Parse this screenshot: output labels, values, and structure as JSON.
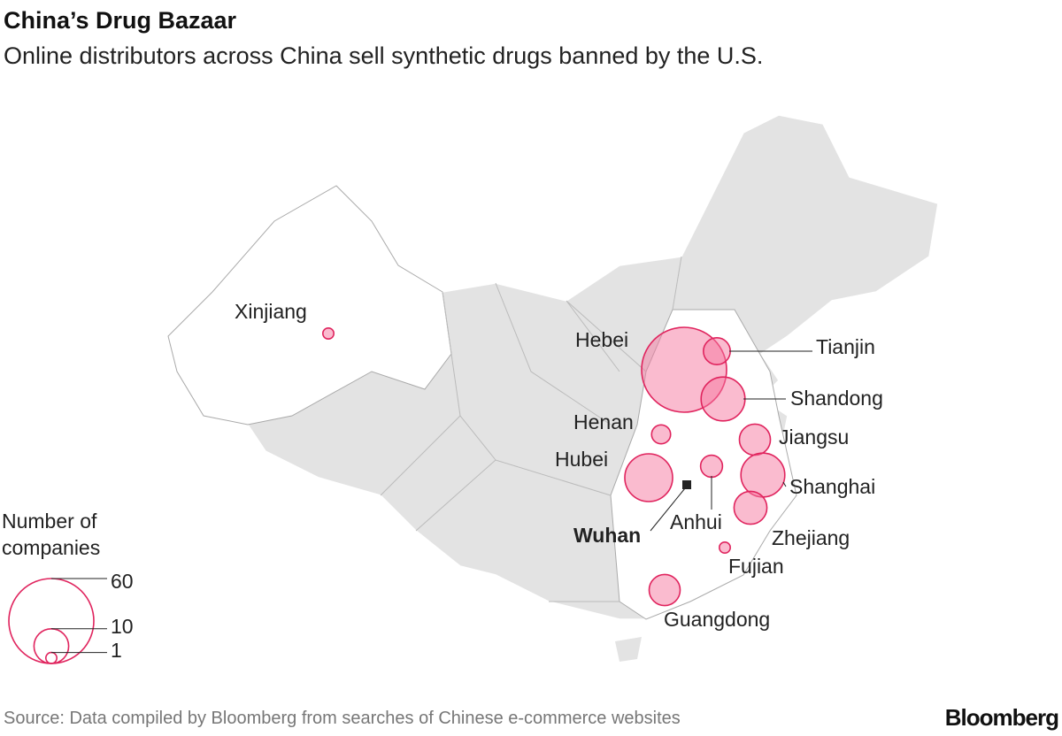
{
  "title": "China’s Drug Bazaar",
  "subtitle": "Online distributors across China sell synthetic drugs banned by the U.S.",
  "provinces": [
    {
      "name": "Hebei",
      "value": 60
    },
    {
      "name": "Tianjin",
      "value": 6
    },
    {
      "name": "Shandong",
      "value": 16
    },
    {
      "name": "Henan",
      "value": 3
    },
    {
      "name": "Jiangsu",
      "value": 8
    },
    {
      "name": "Hubei",
      "value": 19
    },
    {
      "name": "Anhui",
      "value": 4
    },
    {
      "name": "Shanghai",
      "value": 16
    },
    {
      "name": "Zhejiang",
      "value": 9
    },
    {
      "name": "Fujian",
      "value": 1
    },
    {
      "name": "Guangdong",
      "value": 8
    },
    {
      "name": "Xinjiang",
      "value": 1
    }
  ],
  "city": "Wuhan",
  "legend": {
    "title": "Number of companies",
    "sizes": [
      60,
      10,
      1
    ]
  },
  "source": "Source: Data compiled by Bloomberg from searches of Chinese e-commerce websites",
  "brand": "Bloomberg"
}
